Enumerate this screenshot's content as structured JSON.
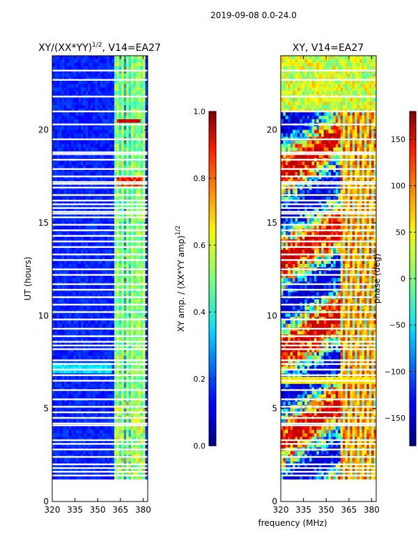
{
  "suptitle": "2019-09-08 0.0-24.0",
  "xlabel_shared": "frequency (MHz)",
  "chart_data": [
    {
      "type": "heatmap",
      "title_prefix": "XY/(XX*YY)",
      "title_sup": "1/2",
      "title_suffix": ", V14=EA27",
      "xlabel": "",
      "ylabel": "UT (hours)",
      "xlim": [
        320,
        383
      ],
      "ylim": [
        0,
        24
      ],
      "xticks": [
        320,
        335,
        350,
        365,
        380
      ],
      "xtick_labels": [
        "320",
        "335",
        "350",
        "365",
        "380"
      ],
      "yticks": [
        0,
        5,
        10,
        15,
        20
      ],
      "ytick_labels": [
        "0",
        "5",
        "10",
        "15",
        "20"
      ],
      "data_start_hours": 1.2,
      "colormap": "jet",
      "colorbar": {
        "label_prefix": "XY amp. / (XX*YY amp)",
        "label_sup": "1/2",
        "range": [
          0.0,
          1.0
        ],
        "ticks": [
          0.0,
          0.2,
          0.4,
          0.6,
          0.8,
          1.0
        ],
        "tick_labels": [
          "0.0",
          "0.2",
          "0.4",
          "0.6",
          "0.8",
          "1.0"
        ]
      }
    },
    {
      "type": "heatmap",
      "title": "XY, V14=EA27",
      "xlabel": "",
      "ylabel": "",
      "xlim": [
        320,
        383
      ],
      "ylim": [
        0,
        24
      ],
      "xticks": [
        320,
        335,
        350,
        365,
        380
      ],
      "xtick_labels": [
        "320",
        "335",
        "350",
        "365",
        "380"
      ],
      "yticks": [
        0,
        5,
        10,
        15,
        20
      ],
      "ytick_labels": [
        "0",
        "5",
        "10",
        "15",
        "20"
      ],
      "data_start_hours": 1.2,
      "colormap": "jet",
      "colorbar": {
        "label": "phase (deg)",
        "range": [
          -180,
          180
        ],
        "ticks": [
          -150,
          -100,
          -50,
          0,
          50,
          100,
          150
        ],
        "tick_labels": [
          "−150",
          "−100",
          "−50",
          "0",
          "50",
          "100",
          "150"
        ]
      }
    }
  ],
  "flagged_hours": [
    23.2,
    22.7,
    21.8,
    21.0,
    20.3,
    19.5,
    18.8,
    18.7,
    18.4,
    17.9,
    17.5,
    17.2,
    17.1,
    16.9,
    16.5,
    16.2,
    16.0,
    15.8,
    15.6,
    15.5,
    15.3,
    14.9,
    14.6,
    14.3,
    14.0,
    13.7,
    13.3,
    13.0,
    12.5,
    12.2,
    11.7,
    11.4,
    11.0,
    10.6,
    10.2,
    9.8,
    9.3,
    8.9,
    8.6,
    8.4,
    8.2,
    7.6,
    7.4,
    7.1,
    6.8,
    6.5,
    6.0,
    5.5,
    5.1,
    4.8,
    4.5,
    4.2,
    4.1,
    3.3,
    3.1,
    2.8,
    2.4,
    2.0,
    1.8,
    1.6,
    1.4
  ]
}
